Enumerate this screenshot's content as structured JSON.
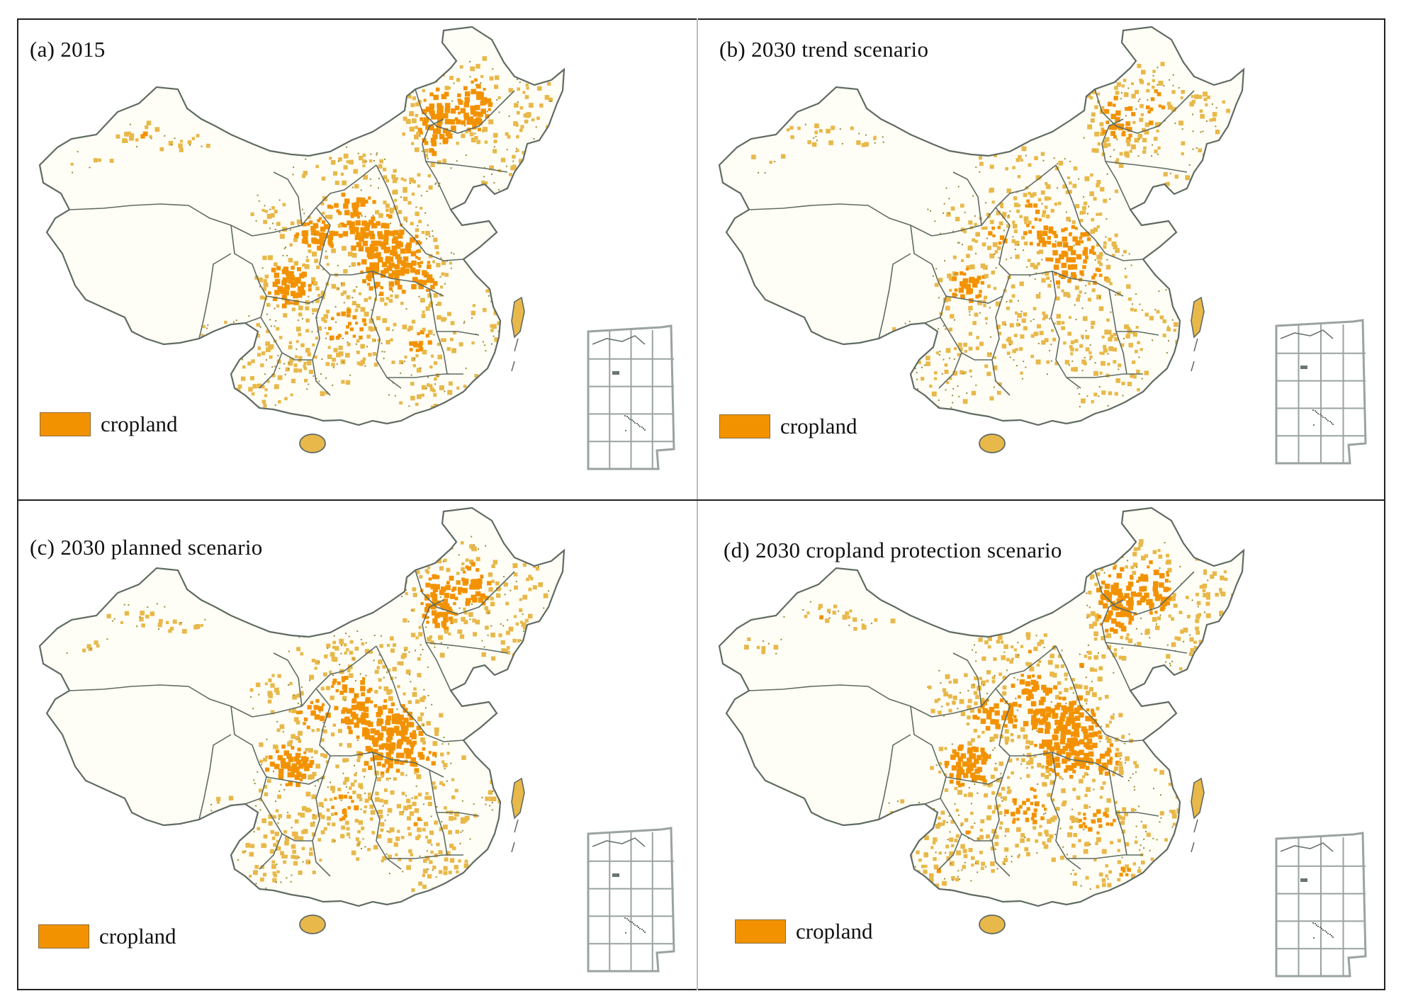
{
  "map_colors": {
    "cropland": "#f39200",
    "cropland_light": "#e8b84a",
    "border": "#5f6b62",
    "land_background": "#fffef6"
  },
  "legend_label": "cropland",
  "panels": [
    {
      "id": "a",
      "title": "(a) 2015",
      "cropland_density": 1.0
    },
    {
      "id": "b",
      "title": "(b) 2030 trend scenario",
      "cropland_density": 0.72
    },
    {
      "id": "c",
      "title": "(c) 2030 planned scenario",
      "cropland_density": 0.92
    },
    {
      "id": "d",
      "title": "(d) 2030 cropland protection scenario",
      "cropland_density": 1.05
    }
  ],
  "inset": {
    "icon": "south-china-sea-inset-map-icon"
  }
}
